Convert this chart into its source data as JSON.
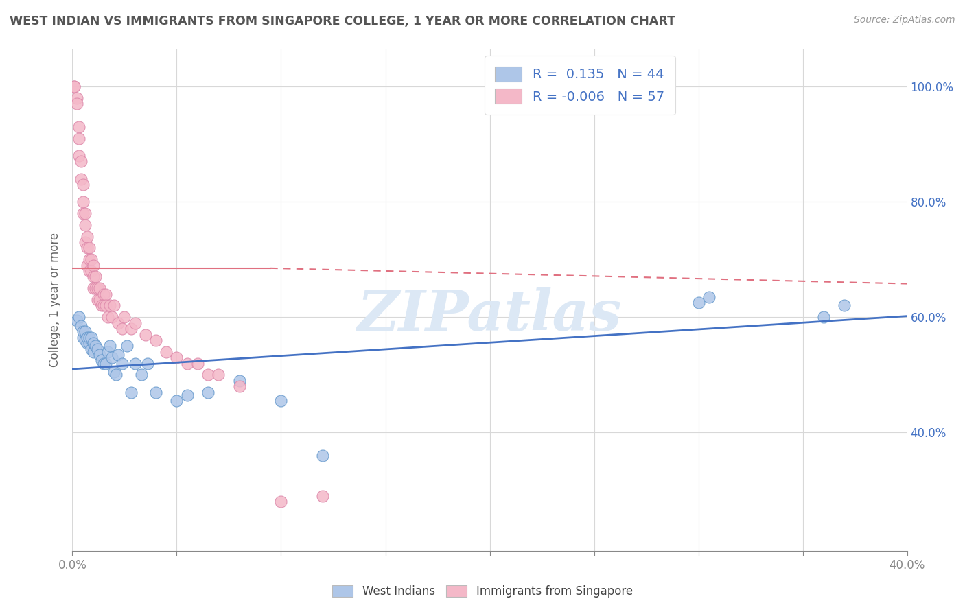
{
  "title": "WEST INDIAN VS IMMIGRANTS FROM SINGAPORE COLLEGE, 1 YEAR OR MORE CORRELATION CHART",
  "source": "Source: ZipAtlas.com",
  "ylabel": "College, 1 year or more",
  "xlim": [
    0.0,
    0.4
  ],
  "ylim": [
    0.195,
    1.065
  ],
  "xtick_vals": [
    0.0,
    0.05,
    0.1,
    0.15,
    0.2,
    0.25,
    0.3,
    0.35,
    0.4
  ],
  "xtick_show": [
    0.0,
    0.4
  ],
  "xtick_labels_edge": [
    "0.0%",
    "40.0%"
  ],
  "ytick_vals": [
    0.4,
    0.6,
    0.8,
    1.0
  ],
  "ytick_labels": [
    "40.0%",
    "60.0%",
    "80.0%",
    "100.0%"
  ],
  "blue_R": 0.135,
  "blue_N": 44,
  "pink_R": -0.006,
  "pink_N": 57,
  "blue_color": "#aec6e8",
  "pink_color": "#f4b8c8",
  "blue_edge_color": "#6699cc",
  "pink_edge_color": "#dd88aa",
  "blue_line_color": "#4472c4",
  "pink_line_color": "#e07080",
  "title_color": "#555555",
  "legend_text_color": "#4472c4",
  "axis_color": "#888888",
  "grid_color": "#d8d8d8",
  "right_tick_color": "#4472c4",
  "watermark_text": "ZIPatlas",
  "watermark_color": "#dce8f5",
  "blue_scatter_x": [
    0.002,
    0.003,
    0.004,
    0.005,
    0.005,
    0.006,
    0.006,
    0.007,
    0.007,
    0.008,
    0.008,
    0.009,
    0.009,
    0.01,
    0.01,
    0.011,
    0.012,
    0.013,
    0.014,
    0.015,
    0.016,
    0.017,
    0.018,
    0.019,
    0.02,
    0.021,
    0.022,
    0.024,
    0.026,
    0.028,
    0.03,
    0.033,
    0.036,
    0.04,
    0.05,
    0.055,
    0.065,
    0.08,
    0.1,
    0.12,
    0.3,
    0.305,
    0.36,
    0.37
  ],
  "blue_scatter_y": [
    0.595,
    0.6,
    0.585,
    0.565,
    0.575,
    0.56,
    0.575,
    0.555,
    0.565,
    0.555,
    0.565,
    0.545,
    0.565,
    0.54,
    0.555,
    0.55,
    0.545,
    0.535,
    0.525,
    0.52,
    0.52,
    0.54,
    0.55,
    0.53,
    0.505,
    0.5,
    0.535,
    0.52,
    0.55,
    0.47,
    0.52,
    0.5,
    0.52,
    0.47,
    0.455,
    0.465,
    0.47,
    0.49,
    0.455,
    0.36,
    0.625,
    0.635,
    0.6,
    0.62
  ],
  "pink_scatter_x": [
    0.001,
    0.001,
    0.002,
    0.002,
    0.003,
    0.003,
    0.003,
    0.004,
    0.004,
    0.005,
    0.005,
    0.005,
    0.006,
    0.006,
    0.006,
    0.007,
    0.007,
    0.007,
    0.008,
    0.008,
    0.008,
    0.009,
    0.009,
    0.01,
    0.01,
    0.01,
    0.011,
    0.011,
    0.012,
    0.012,
    0.013,
    0.013,
    0.014,
    0.015,
    0.015,
    0.016,
    0.016,
    0.017,
    0.018,
    0.019,
    0.02,
    0.022,
    0.024,
    0.025,
    0.028,
    0.03,
    0.035,
    0.04,
    0.045,
    0.05,
    0.055,
    0.06,
    0.065,
    0.07,
    0.08,
    0.1,
    0.12
  ],
  "pink_scatter_y": [
    1.0,
    1.0,
    0.98,
    0.97,
    0.93,
    0.91,
    0.88,
    0.87,
    0.84,
    0.83,
    0.8,
    0.78,
    0.78,
    0.76,
    0.73,
    0.74,
    0.72,
    0.69,
    0.72,
    0.7,
    0.68,
    0.7,
    0.68,
    0.69,
    0.67,
    0.65,
    0.67,
    0.65,
    0.65,
    0.63,
    0.65,
    0.63,
    0.62,
    0.64,
    0.62,
    0.64,
    0.62,
    0.6,
    0.62,
    0.6,
    0.62,
    0.59,
    0.58,
    0.6,
    0.58,
    0.59,
    0.57,
    0.56,
    0.54,
    0.53,
    0.52,
    0.52,
    0.5,
    0.5,
    0.48,
    0.28,
    0.29
  ],
  "blue_trend_x": [
    0.0,
    0.4
  ],
  "blue_trend_y": [
    0.51,
    0.602
  ],
  "pink_trend_x": [
    0.0,
    0.095
  ],
  "pink_trend_y": [
    0.685,
    0.685
  ],
  "pink_trend2_x": [
    0.095,
    0.4
  ],
  "pink_trend2_y": [
    0.685,
    0.658
  ]
}
